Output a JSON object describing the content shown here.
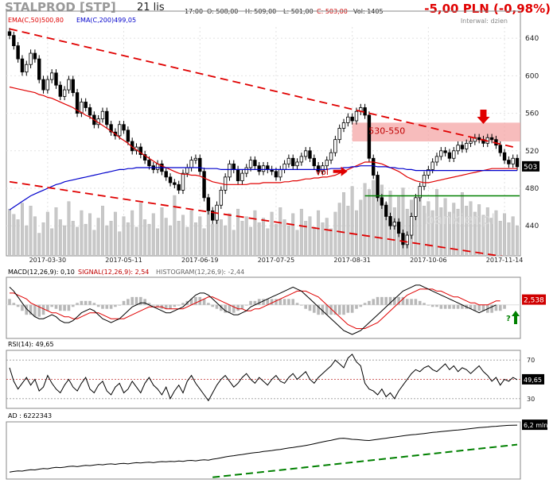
{
  "header": {
    "ticker": "STALPROD [STP]",
    "date": "21 lis",
    "time": "17:00",
    "open": "O: 508,00",
    "high": "H: 509,00",
    "low": "L: 501,00",
    "close": "C: 503,00",
    "volume": "Vol: 1405",
    "change": "-5,00 PLN (-0,98%)",
    "interval": "Interwal: dzien",
    "watermark": "bankier.pl"
  },
  "colors": {
    "up": "#000000",
    "down": "#000000",
    "ema50": "#e00000",
    "ema200": "#0000cc",
    "trend": "#e00000",
    "support": "#008000",
    "zone": "#f4a6a6",
    "volume": "#c8c8c8"
  },
  "chart_data": [
    {
      "type": "candlestick",
      "panel": "price",
      "legend": [
        "EMA(C,50)500,80",
        "EMA(C,200)499,05"
      ],
      "x_ticks": [
        "2017-03-30",
        "2017-05-11",
        "2017-06-19",
        "2017-07-25",
        "2017-08-31",
        "2017-10-06",
        "2017-11-14"
      ],
      "ylim": [
        408,
        652
      ],
      "y_ticks": [
        440,
        480,
        520,
        560,
        600,
        640
      ],
      "last_price_label": "503",
      "zone": {
        "label": "530-550",
        "low": 530,
        "high": 550
      },
      "support_level": 472,
      "annotation_vol": "vol",
      "close_series": [
        643,
        632,
        618,
        604,
        612,
        624,
        618,
        596,
        585,
        596,
        603,
        590,
        578,
        585,
        596,
        582,
        560,
        572,
        566,
        558,
        548,
        554,
        562,
        548,
        540,
        536,
        548,
        542,
        530,
        520,
        524,
        516,
        510,
        504,
        500,
        506,
        498,
        492,
        486,
        484,
        478,
        496,
        502,
        510,
        512,
        498,
        470,
        456,
        446,
        462,
        478,
        492,
        506,
        500,
        488,
        496,
        502,
        510,
        504,
        498,
        504,
        500,
        498,
        492,
        500,
        506,
        512,
        504,
        508,
        514,
        520,
        512,
        504,
        498,
        504,
        510,
        518,
        532,
        544,
        550,
        556,
        552,
        562,
        566,
        558,
        512,
        494,
        470,
        462,
        450,
        440,
        444,
        432,
        420,
        430,
        450,
        470,
        482,
        494,
        500,
        508,
        514,
        520,
        518,
        512,
        520,
        526,
        522,
        528,
        530,
        534,
        532,
        528,
        534,
        532,
        526,
        518,
        510,
        506,
        512,
        503
      ],
      "ema50_series": [
        588,
        587,
        586,
        585,
        584,
        583,
        582,
        580,
        579,
        577,
        576,
        574,
        572,
        570,
        568,
        566,
        563,
        561,
        558,
        556,
        553,
        550,
        547,
        544,
        541,
        538,
        534,
        531,
        528,
        524,
        521,
        518,
        515,
        512,
        509,
        506,
        504,
        502,
        500,
        498,
        496,
        495,
        495,
        494,
        494,
        493,
        491,
        489,
        487,
        486,
        485,
        484,
        484,
        484,
        484,
        484,
        484,
        485,
        485,
        485,
        486,
        486,
        486,
        486,
        486,
        487,
        487,
        488,
        488,
        489,
        490,
        490,
        491,
        491,
        492,
        492,
        493,
        494,
        496,
        498,
        500,
        502,
        504,
        506,
        508,
        508,
        508,
        507,
        506,
        504,
        502,
        500,
        498,
        495,
        492,
        490,
        488,
        487,
        486,
        486,
        487,
        488,
        489,
        490,
        491,
        492,
        493,
        494,
        495,
        496,
        497,
        498,
        499,
        500,
        501,
        501,
        501,
        501,
        501,
        501,
        501
      ],
      "ema200_series": [
        457,
        460,
        463,
        466,
        469,
        472,
        474,
        476,
        478,
        480,
        482,
        484,
        485,
        487,
        488,
        489,
        490,
        491,
        492,
        493,
        494,
        495,
        496,
        497,
        498,
        499,
        500,
        500,
        501,
        501,
        502,
        502,
        502,
        502,
        502,
        502,
        502,
        502,
        502,
        502,
        502,
        502,
        502,
        502,
        502,
        502,
        501,
        501,
        501,
        501,
        500,
        500,
        500,
        500,
        500,
        500,
        500,
        500,
        500,
        500,
        500,
        500,
        500,
        500,
        500,
        500,
        500,
        500,
        500,
        500,
        500,
        500,
        500,
        500,
        500,
        500,
        501,
        501,
        501,
        502,
        502,
        503,
        503,
        504,
        504,
        504,
        504,
        503,
        503,
        503,
        502,
        502,
        501,
        501,
        500,
        500,
        499,
        499,
        499,
        499,
        499,
        499,
        499,
        499,
        499,
        499,
        499,
        499,
        499,
        499,
        499,
        499,
        499,
        499,
        499,
        499,
        499,
        499,
        499,
        499,
        499
      ],
      "volume": [
        62,
        55,
        48,
        70,
        40,
        66,
        52,
        30,
        44,
        58,
        36,
        64,
        48,
        40,
        72,
        46,
        38,
        60,
        42,
        56,
        34,
        50,
        66,
        40,
        46,
        58,
        32,
        52,
        44,
        60,
        38,
        70,
        48,
        42,
        56,
        36,
        64,
        50,
        40,
        80,
        46,
        54,
        38,
        60,
        44,
        52,
        36,
        58,
        42,
        66,
        48,
        40,
        56,
        34,
        62,
        46,
        52,
        38,
        60,
        44,
        50,
        36,
        58,
        42,
        64,
        48,
        40,
        56,
        34,
        62,
        46,
        52,
        38,
        60,
        44,
        50,
        36,
        58,
        70,
        84,
        66,
        92,
        60,
        74,
        96,
        88,
        100,
        82,
        94,
        70,
        86,
        64,
        78,
        90,
        62,
        74,
        58,
        80,
        66,
        72,
        60,
        88,
        64,
        76,
        58,
        70,
        62,
        84,
        66,
        72,
        58,
        68,
        54,
        64,
        50,
        60,
        46,
        56,
        44,
        52,
        40
      ]
    },
    {
      "type": "line",
      "panel": "macd",
      "legend": [
        "MACD(12,26,9): 0,10",
        "SIGNAL(12,26,9): 2,54",
        "HISTOGRAM(12,26,9): -2,44"
      ],
      "last_label": "2,538",
      "annotation": "?",
      "ylim": [
        -17,
        14
      ],
      "macd_series": [
        9,
        7,
        4,
        1,
        -2,
        -4,
        -6,
        -7,
        -7,
        -6,
        -5,
        -6,
        -8,
        -9,
        -9,
        -8,
        -6,
        -4,
        -3,
        -2,
        -3,
        -5,
        -7,
        -8,
        -9,
        -8,
        -7,
        -5,
        -3,
        -1,
        0,
        1,
        1,
        0,
        -1,
        -2,
        -3,
        -4,
        -4,
        -3,
        -2,
        -1,
        1,
        3,
        5,
        6,
        6,
        5,
        3,
        1,
        -1,
        -3,
        -4,
        -5,
        -5,
        -4,
        -3,
        -1,
        0,
        1,
        2,
        3,
        4,
        5,
        6,
        7,
        8,
        9,
        8,
        7,
        5,
        3,
        1,
        -1,
        -3,
        -5,
        -7,
        -9,
        -11,
        -13,
        -14,
        -15,
        -14,
        -13,
        -11,
        -9,
        -7,
        -5,
        -3,
        -1,
        1,
        3,
        5,
        7,
        8,
        9,
        10,
        10,
        9,
        8,
        7,
        6,
        5,
        4,
        3,
        2,
        1,
        0,
        -1,
        -2,
        -3,
        -4,
        -3,
        -2,
        -1,
        0
      ],
      "signal_series": [
        6,
        6,
        5,
        4,
        3,
        1,
        0,
        -1,
        -2,
        -3,
        -4,
        -4,
        -5,
        -6,
        -6,
        -7,
        -7,
        -6,
        -5,
        -4,
        -4,
        -4,
        -5,
        -6,
        -7,
        -7,
        -7,
        -7,
        -6,
        -5,
        -4,
        -3,
        -2,
        -1,
        -1,
        -1,
        -1,
        -2,
        -2,
        -2,
        -2,
        -2,
        -1,
        0,
        1,
        2,
        3,
        4,
        4,
        3,
        2,
        1,
        0,
        -1,
        -2,
        -2,
        -3,
        -3,
        -2,
        -2,
        -1,
        0,
        1,
        2,
        3,
        4,
        5,
        6,
        7,
        7,
        7,
        6,
        5,
        4,
        2,
        0,
        -2,
        -4,
        -6,
        -8,
        -10,
        -11,
        -12,
        -12,
        -12,
        -11,
        -10,
        -9,
        -7,
        -5,
        -3,
        -1,
        1,
        3,
        5,
        6,
        7,
        8,
        8,
        8,
        8,
        7,
        7,
        6,
        5,
        4,
        4,
        3,
        2,
        1,
        1,
        0,
        0,
        0,
        1,
        2,
        2
      ],
      "histogram": [
        3,
        1,
        -1,
        -3,
        -5,
        -5,
        -6,
        -6,
        -5,
        -3,
        -1,
        -2,
        -3,
        -3,
        -3,
        -1,
        1,
        2,
        2,
        2,
        1,
        -1,
        -2,
        -2,
        -2,
        -1,
        0,
        2,
        3,
        4,
        4,
        4,
        3,
        1,
        0,
        -1,
        -2,
        -2,
        -2,
        -1,
        0,
        1,
        2,
        3,
        4,
        4,
        3,
        1,
        -1,
        -2,
        -3,
        -4,
        -4,
        -4,
        -3,
        -2,
        0,
        2,
        2,
        3,
        3,
        3,
        3,
        3,
        3,
        3,
        3,
        3,
        1,
        0,
        -2,
        -3,
        -4,
        -5,
        -5,
        -5,
        -5,
        -5,
        -5,
        -5,
        -4,
        -4,
        -2,
        -1,
        1,
        2,
        3,
        4,
        4,
        4,
        4,
        4,
        4,
        4,
        3,
        3,
        3,
        2,
        1,
        0,
        -1,
        -1,
        -2,
        -2,
        -2,
        -2,
        -2,
        -2,
        -2,
        -2,
        -3,
        -3,
        -3,
        -4,
        -4,
        -3,
        -3,
        -2
      ]
    },
    {
      "type": "line",
      "panel": "rsi",
      "legend": "RSI(14): 49,65",
      "last_label": "49,65",
      "ylim": [
        20,
        80
      ],
      "y_ticks": [
        30,
        70
      ],
      "series": [
        62,
        48,
        40,
        46,
        52,
        44,
        50,
        38,
        42,
        54,
        46,
        40,
        36,
        44,
        50,
        42,
        38,
        46,
        52,
        40,
        36,
        44,
        48,
        38,
        34,
        42,
        46,
        36,
        40,
        48,
        42,
        36,
        46,
        52,
        44,
        40,
        34,
        42,
        30,
        38,
        44,
        36,
        48,
        54,
        46,
        40,
        34,
        28,
        36,
        44,
        50,
        54,
        48,
        42,
        46,
        52,
        56,
        50,
        46,
        52,
        48,
        44,
        50,
        54,
        48,
        46,
        52,
        56,
        50,
        54,
        58,
        50,
        46,
        52,
        56,
        60,
        64,
        70,
        66,
        62,
        72,
        76,
        68,
        64,
        46,
        40,
        38,
        34,
        40,
        32,
        36,
        30,
        38,
        44,
        50,
        56,
        60,
        58,
        62,
        64,
        60,
        58,
        62,
        66,
        60,
        64,
        58,
        62,
        60,
        56,
        60,
        64,
        58,
        54,
        48,
        52,
        44,
        50,
        48,
        52,
        49.65
      ]
    },
    {
      "type": "line",
      "panel": "ad",
      "legend": "AD : 6222343",
      "last_label": "6,2 mln",
      "series": [
        2.2,
        2.25,
        2.3,
        2.28,
        2.35,
        2.4,
        2.38,
        2.45,
        2.5,
        2.48,
        2.55,
        2.6,
        2.58,
        2.62,
        2.68,
        2.7,
        2.66,
        2.72,
        2.78,
        2.75,
        2.8,
        2.85,
        2.82,
        2.88,
        2.9,
        2.86,
        2.92,
        2.95,
        2.9,
        2.96,
        3.0,
        2.98,
        3.02,
        3.05,
        3.0,
        3.06,
        3.1,
        3.08,
        3.12,
        3.1,
        3.15,
        3.12,
        3.18,
        3.2,
        3.16,
        3.22,
        3.25,
        3.22,
        3.3,
        3.35,
        3.42,
        3.5,
        3.55,
        3.6,
        3.66,
        3.7,
        3.76,
        3.82,
        3.86,
        3.9,
        3.96,
        4.0,
        4.04,
        4.1,
        4.14,
        4.2,
        4.26,
        4.3,
        4.36,
        4.42,
        4.48,
        4.55,
        4.62,
        4.7,
        4.78,
        4.86,
        4.92,
        5.0,
        5.08,
        5.1,
        5.05,
        5.0,
        4.98,
        4.95,
        4.92,
        4.9,
        4.95,
        5.0,
        5.05,
        5.1,
        5.15,
        5.2,
        5.25,
        5.3,
        5.35,
        5.4,
        5.42,
        5.46,
        5.5,
        5.55,
        5.6,
        5.62,
        5.66,
        5.7,
        5.74,
        5.78,
        5.8,
        5.84,
        5.88,
        5.92,
        5.96,
        6.0,
        6.03,
        6.06,
        6.1,
        6.12,
        6.15,
        6.18,
        6.2,
        6.21,
        6.22
      ]
    }
  ]
}
